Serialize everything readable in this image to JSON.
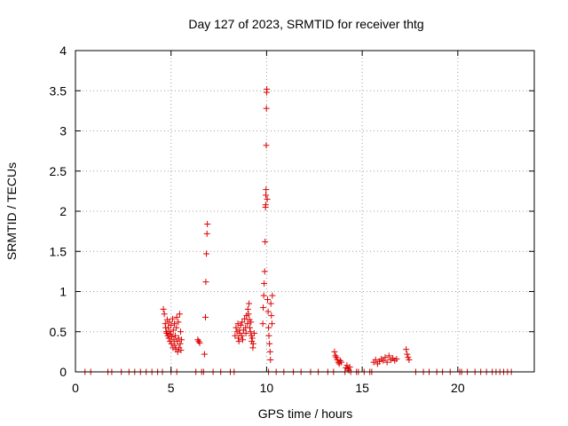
{
  "chart_data": {
    "type": "scatter",
    "title": "Day 127 of 2023, SRMTID for receiver thtg",
    "xlabel": "GPS time / hours",
    "ylabel": "SRMTID / TECUs",
    "xlim": [
      0,
      24
    ],
    "ylim": [
      0,
      4
    ],
    "xticks": [
      0,
      5,
      10,
      15,
      20
    ],
    "yticks": [
      0,
      0.5,
      1,
      1.5,
      2,
      2.5,
      3,
      3.5,
      4
    ],
    "grid": true,
    "marker": "+",
    "color": "#dd0000",
    "series": [
      {
        "name": "SRMTID",
        "points": [
          [
            0.5,
            0
          ],
          [
            0.8,
            0
          ],
          [
            1.7,
            0
          ],
          [
            1.9,
            0
          ],
          [
            2.4,
            0
          ],
          [
            2.8,
            0
          ],
          [
            3.1,
            0
          ],
          [
            3.4,
            0
          ],
          [
            3.7,
            0
          ],
          [
            4.0,
            0
          ],
          [
            4.3,
            0
          ],
          [
            4.55,
            0
          ],
          [
            4.6,
            0.78
          ],
          [
            4.65,
            0.72
          ],
          [
            4.7,
            0.6
          ],
          [
            4.72,
            0.55
          ],
          [
            4.75,
            0.5
          ],
          [
            4.78,
            0.48
          ],
          [
            4.8,
            0.65
          ],
          [
            4.83,
            0.45
          ],
          [
            4.85,
            0.55
          ],
          [
            4.88,
            0.42
          ],
          [
            4.9,
            0.62
          ],
          [
            4.93,
            0.5
          ],
          [
            4.95,
            0.38
          ],
          [
            4.98,
            0.47
          ],
          [
            5.0,
            0.58
          ],
          [
            5.02,
            0.35
          ],
          [
            5.05,
            0.44
          ],
          [
            5.08,
            0.66
          ],
          [
            5.1,
            0.3
          ],
          [
            5.12,
            0.52
          ],
          [
            5.15,
            0.4
          ],
          [
            5.18,
            0.6
          ],
          [
            5.2,
            0.33
          ],
          [
            5.22,
            0.45
          ],
          [
            5.25,
            0.28
          ],
          [
            5.28,
            0.55
          ],
          [
            5.3,
            0.68
          ],
          [
            5.32,
            0.38
          ],
          [
            5.35,
            0.25
          ],
          [
            5.38,
            0.62
          ],
          [
            5.4,
            0.42
          ],
          [
            5.42,
            0.3
          ],
          [
            5.45,
            0.72
          ],
          [
            5.48,
            0.35
          ],
          [
            5.5,
            0.5
          ],
          [
            5.52,
            0.27
          ],
          [
            5.55,
            0.4
          ],
          [
            5.0,
            0
          ],
          [
            5.3,
            0
          ],
          [
            6.3,
            0
          ],
          [
            6.4,
            0.4
          ],
          [
            6.45,
            0.38
          ],
          [
            6.5,
            0.36
          ],
          [
            6.6,
            0
          ],
          [
            6.7,
            0
          ],
          [
            6.75,
            0.22
          ],
          [
            6.8,
            0.68
          ],
          [
            6.82,
            1.12
          ],
          [
            6.85,
            1.47
          ],
          [
            6.88,
            1.72
          ],
          [
            6.9,
            1.84
          ],
          [
            7.2,
            0
          ],
          [
            7.6,
            0
          ],
          [
            8.1,
            0
          ],
          [
            8.3,
            0
          ],
          [
            8.35,
            0.45
          ],
          [
            8.4,
            0.55
          ],
          [
            8.45,
            0.5
          ],
          [
            8.5,
            0.6
          ],
          [
            8.52,
            0.42
          ],
          [
            8.55,
            0.38
          ],
          [
            8.58,
            0.52
          ],
          [
            8.6,
            0.48
          ],
          [
            8.65,
            0.58
          ],
          [
            8.7,
            0.45
          ],
          [
            8.72,
            0.62
          ],
          [
            8.75,
            0.4
          ],
          [
            8.8,
            0.52
          ],
          [
            8.85,
            0.66
          ],
          [
            8.9,
            0.55
          ],
          [
            8.92,
            0.48
          ],
          [
            8.95,
            0.7
          ],
          [
            9.0,
            0.6
          ],
          [
            9.02,
            0.78
          ],
          [
            9.05,
            0.72
          ],
          [
            9.08,
            0.85
          ],
          [
            9.1,
            0.65
          ],
          [
            9.12,
            0.55
          ],
          [
            9.15,
            0.5
          ],
          [
            9.18,
            0.62
          ],
          [
            9.2,
            0.45
          ],
          [
            9.22,
            0.38
          ],
          [
            9.25,
            0.42
          ],
          [
            9.28,
            0.3
          ],
          [
            9.3,
            0.35
          ],
          [
            9.35,
            0.48
          ],
          [
            9.8,
            0.6
          ],
          [
            9.82,
            0.8
          ],
          [
            9.85,
            0.95
          ],
          [
            9.87,
            1.1
          ],
          [
            9.9,
            1.25
          ],
          [
            9.92,
            1.62
          ],
          [
            9.94,
            2.05
          ],
          [
            9.95,
            2.08
          ],
          [
            9.96,
            2.2
          ],
          [
            9.97,
            2.27
          ],
          [
            9.98,
            2.82
          ],
          [
            9.99,
            3.28
          ],
          [
            10.0,
            3.48
          ],
          [
            10.01,
            3.52
          ],
          [
            10.03,
            2.15
          ],
          [
            10.05,
            0.9
          ],
          [
            10.08,
            0.75
          ],
          [
            10.1,
            0.55
          ],
          [
            10.12,
            0.45
          ],
          [
            10.15,
            0.35
          ],
          [
            10.18,
            0.25
          ],
          [
            10.2,
            0.15
          ],
          [
            10.22,
            0.85
          ],
          [
            10.25,
            0.7
          ],
          [
            10.28,
            0.6
          ],
          [
            10.3,
            0.95
          ],
          [
            10.1,
            0
          ],
          [
            10.5,
            0
          ],
          [
            10.9,
            0
          ],
          [
            11.4,
            0
          ],
          [
            11.8,
            0
          ],
          [
            12.3,
            0
          ],
          [
            12.7,
            0
          ],
          [
            13.2,
            0
          ],
          [
            13.5,
            0
          ],
          [
            13.55,
            0.25
          ],
          [
            13.6,
            0.2
          ],
          [
            13.65,
            0.18
          ],
          [
            13.7,
            0.15
          ],
          [
            13.75,
            0.12
          ],
          [
            13.8,
            0.1
          ],
          [
            13.85,
            0.14
          ],
          [
            13.9,
            0.12
          ],
          [
            14.1,
            0
          ],
          [
            14.15,
            0.05
          ],
          [
            14.2,
            0.08
          ],
          [
            14.25,
            0.04
          ],
          [
            14.3,
            0.02
          ],
          [
            14.35,
            0.06
          ],
          [
            14.4,
            0
          ],
          [
            14.7,
            0
          ],
          [
            14.8,
            0
          ],
          [
            15.1,
            0
          ],
          [
            15.4,
            0
          ],
          [
            15.5,
            0
          ],
          [
            15.6,
            0.12
          ],
          [
            15.7,
            0.15
          ],
          [
            15.8,
            0.1
          ],
          [
            15.9,
            0.13
          ],
          [
            16.0,
            0.16
          ],
          [
            16.1,
            0.14
          ],
          [
            16.2,
            0.18
          ],
          [
            16.3,
            0.12
          ],
          [
            16.4,
            0.2
          ],
          [
            16.5,
            0.15
          ],
          [
            16.6,
            0.17
          ],
          [
            16.7,
            0.14
          ],
          [
            16.8,
            0.16
          ],
          [
            17.3,
            0.28
          ],
          [
            17.35,
            0.22
          ],
          [
            17.4,
            0.18
          ],
          [
            17.45,
            0.15
          ],
          [
            17.8,
            0
          ],
          [
            18.2,
            0
          ],
          [
            18.5,
            0
          ],
          [
            18.9,
            0
          ],
          [
            19.2,
            0
          ],
          [
            19.6,
            0
          ],
          [
            20.1,
            0
          ],
          [
            20.2,
            0
          ],
          [
            20.5,
            0
          ],
          [
            20.9,
            0
          ],
          [
            21.2,
            0
          ],
          [
            21.5,
            0
          ],
          [
            21.8,
            0
          ],
          [
            22.0,
            0
          ],
          [
            22.2,
            0
          ],
          [
            22.4,
            0
          ],
          [
            22.6,
            0
          ],
          [
            22.8,
            0
          ]
        ]
      }
    ]
  }
}
